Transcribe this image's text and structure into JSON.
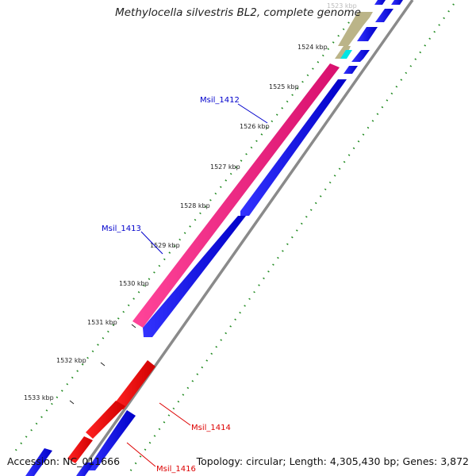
{
  "title": "Methylocella silvestris BL2, complete genome",
  "accession": "Accession: NC_011666",
  "summary": "Topology: circular; Length: 4,305,430 bp; Genes: 3,872",
  "ticks": [
    {
      "label": "1523 kbp",
      "faded": true
    },
    {
      "label": "1524 kbp"
    },
    {
      "label": "1525 kbp"
    },
    {
      "label": "1526 kbp"
    },
    {
      "label": "1527 kbp"
    },
    {
      "label": "1528 kbp"
    },
    {
      "label": "1529 kbp"
    },
    {
      "label": "1530 kbp"
    },
    {
      "label": "1531 kbp"
    },
    {
      "label": "1532 kbp"
    },
    {
      "label": "1533 kbp"
    }
  ],
  "gene_labels": [
    {
      "name": "Msil_1412",
      "color": "#0000cc"
    },
    {
      "name": "Msil_1413",
      "color": "#0000cc"
    },
    {
      "name": "Msil_1414",
      "color": "#dd0000"
    },
    {
      "name": "Msil_1416",
      "color": "#dd0000"
    }
  ],
  "colors": {
    "forward_gene": "#0000ee",
    "reverse_gene": "#ee0000",
    "highlight_gene": "#ee2288",
    "other_gene": "#bbb488",
    "cyan_gene": "#00e5e5",
    "backbone": "#8a8a8a",
    "gc_dots": "#228b22"
  }
}
